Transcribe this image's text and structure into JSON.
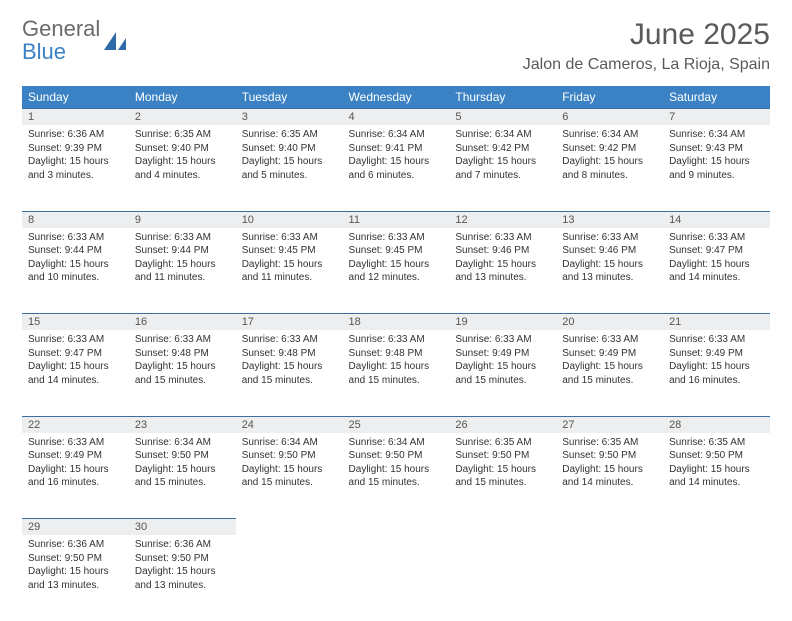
{
  "brand": {
    "line1": "General",
    "line2": "Blue"
  },
  "colors": {
    "header_bg": "#3b82c4",
    "header_text": "#ffffff",
    "daynum_bg": "#eceeef",
    "row_border": "#3b6fa0",
    "text": "#333333",
    "muted": "#5a5a5a",
    "brand_gray": "#6b6b6b",
    "brand_blue": "#3b82c4"
  },
  "title": "June 2025",
  "location": "Jalon de Cameros, La Rioja, Spain",
  "weekdays": [
    "Sunday",
    "Monday",
    "Tuesday",
    "Wednesday",
    "Thursday",
    "Friday",
    "Saturday"
  ],
  "weeks": [
    [
      {
        "n": "1",
        "sr": "Sunrise: 6:36 AM",
        "ss": "Sunset: 9:39 PM",
        "d1": "Daylight: 15 hours",
        "d2": "and 3 minutes."
      },
      {
        "n": "2",
        "sr": "Sunrise: 6:35 AM",
        "ss": "Sunset: 9:40 PM",
        "d1": "Daylight: 15 hours",
        "d2": "and 4 minutes."
      },
      {
        "n": "3",
        "sr": "Sunrise: 6:35 AM",
        "ss": "Sunset: 9:40 PM",
        "d1": "Daylight: 15 hours",
        "d2": "and 5 minutes."
      },
      {
        "n": "4",
        "sr": "Sunrise: 6:34 AM",
        "ss": "Sunset: 9:41 PM",
        "d1": "Daylight: 15 hours",
        "d2": "and 6 minutes."
      },
      {
        "n": "5",
        "sr": "Sunrise: 6:34 AM",
        "ss": "Sunset: 9:42 PM",
        "d1": "Daylight: 15 hours",
        "d2": "and 7 minutes."
      },
      {
        "n": "6",
        "sr": "Sunrise: 6:34 AM",
        "ss": "Sunset: 9:42 PM",
        "d1": "Daylight: 15 hours",
        "d2": "and 8 minutes."
      },
      {
        "n": "7",
        "sr": "Sunrise: 6:34 AM",
        "ss": "Sunset: 9:43 PM",
        "d1": "Daylight: 15 hours",
        "d2": "and 9 minutes."
      }
    ],
    [
      {
        "n": "8",
        "sr": "Sunrise: 6:33 AM",
        "ss": "Sunset: 9:44 PM",
        "d1": "Daylight: 15 hours",
        "d2": "and 10 minutes."
      },
      {
        "n": "9",
        "sr": "Sunrise: 6:33 AM",
        "ss": "Sunset: 9:44 PM",
        "d1": "Daylight: 15 hours",
        "d2": "and 11 minutes."
      },
      {
        "n": "10",
        "sr": "Sunrise: 6:33 AM",
        "ss": "Sunset: 9:45 PM",
        "d1": "Daylight: 15 hours",
        "d2": "and 11 minutes."
      },
      {
        "n": "11",
        "sr": "Sunrise: 6:33 AM",
        "ss": "Sunset: 9:45 PM",
        "d1": "Daylight: 15 hours",
        "d2": "and 12 minutes."
      },
      {
        "n": "12",
        "sr": "Sunrise: 6:33 AM",
        "ss": "Sunset: 9:46 PM",
        "d1": "Daylight: 15 hours",
        "d2": "and 13 minutes."
      },
      {
        "n": "13",
        "sr": "Sunrise: 6:33 AM",
        "ss": "Sunset: 9:46 PM",
        "d1": "Daylight: 15 hours",
        "d2": "and 13 minutes."
      },
      {
        "n": "14",
        "sr": "Sunrise: 6:33 AM",
        "ss": "Sunset: 9:47 PM",
        "d1": "Daylight: 15 hours",
        "d2": "and 14 minutes."
      }
    ],
    [
      {
        "n": "15",
        "sr": "Sunrise: 6:33 AM",
        "ss": "Sunset: 9:47 PM",
        "d1": "Daylight: 15 hours",
        "d2": "and 14 minutes."
      },
      {
        "n": "16",
        "sr": "Sunrise: 6:33 AM",
        "ss": "Sunset: 9:48 PM",
        "d1": "Daylight: 15 hours",
        "d2": "and 15 minutes."
      },
      {
        "n": "17",
        "sr": "Sunrise: 6:33 AM",
        "ss": "Sunset: 9:48 PM",
        "d1": "Daylight: 15 hours",
        "d2": "and 15 minutes."
      },
      {
        "n": "18",
        "sr": "Sunrise: 6:33 AM",
        "ss": "Sunset: 9:48 PM",
        "d1": "Daylight: 15 hours",
        "d2": "and 15 minutes."
      },
      {
        "n": "19",
        "sr": "Sunrise: 6:33 AM",
        "ss": "Sunset: 9:49 PM",
        "d1": "Daylight: 15 hours",
        "d2": "and 15 minutes."
      },
      {
        "n": "20",
        "sr": "Sunrise: 6:33 AM",
        "ss": "Sunset: 9:49 PM",
        "d1": "Daylight: 15 hours",
        "d2": "and 15 minutes."
      },
      {
        "n": "21",
        "sr": "Sunrise: 6:33 AM",
        "ss": "Sunset: 9:49 PM",
        "d1": "Daylight: 15 hours",
        "d2": "and 16 minutes."
      }
    ],
    [
      {
        "n": "22",
        "sr": "Sunrise: 6:33 AM",
        "ss": "Sunset: 9:49 PM",
        "d1": "Daylight: 15 hours",
        "d2": "and 16 minutes."
      },
      {
        "n": "23",
        "sr": "Sunrise: 6:34 AM",
        "ss": "Sunset: 9:50 PM",
        "d1": "Daylight: 15 hours",
        "d2": "and 15 minutes."
      },
      {
        "n": "24",
        "sr": "Sunrise: 6:34 AM",
        "ss": "Sunset: 9:50 PM",
        "d1": "Daylight: 15 hours",
        "d2": "and 15 minutes."
      },
      {
        "n": "25",
        "sr": "Sunrise: 6:34 AM",
        "ss": "Sunset: 9:50 PM",
        "d1": "Daylight: 15 hours",
        "d2": "and 15 minutes."
      },
      {
        "n": "26",
        "sr": "Sunrise: 6:35 AM",
        "ss": "Sunset: 9:50 PM",
        "d1": "Daylight: 15 hours",
        "d2": "and 15 minutes."
      },
      {
        "n": "27",
        "sr": "Sunrise: 6:35 AM",
        "ss": "Sunset: 9:50 PM",
        "d1": "Daylight: 15 hours",
        "d2": "and 14 minutes."
      },
      {
        "n": "28",
        "sr": "Sunrise: 6:35 AM",
        "ss": "Sunset: 9:50 PM",
        "d1": "Daylight: 15 hours",
        "d2": "and 14 minutes."
      }
    ],
    [
      {
        "n": "29",
        "sr": "Sunrise: 6:36 AM",
        "ss": "Sunset: 9:50 PM",
        "d1": "Daylight: 15 hours",
        "d2": "and 13 minutes."
      },
      {
        "n": "30",
        "sr": "Sunrise: 6:36 AM",
        "ss": "Sunset: 9:50 PM",
        "d1": "Daylight: 15 hours",
        "d2": "and 13 minutes."
      },
      null,
      null,
      null,
      null,
      null
    ]
  ]
}
